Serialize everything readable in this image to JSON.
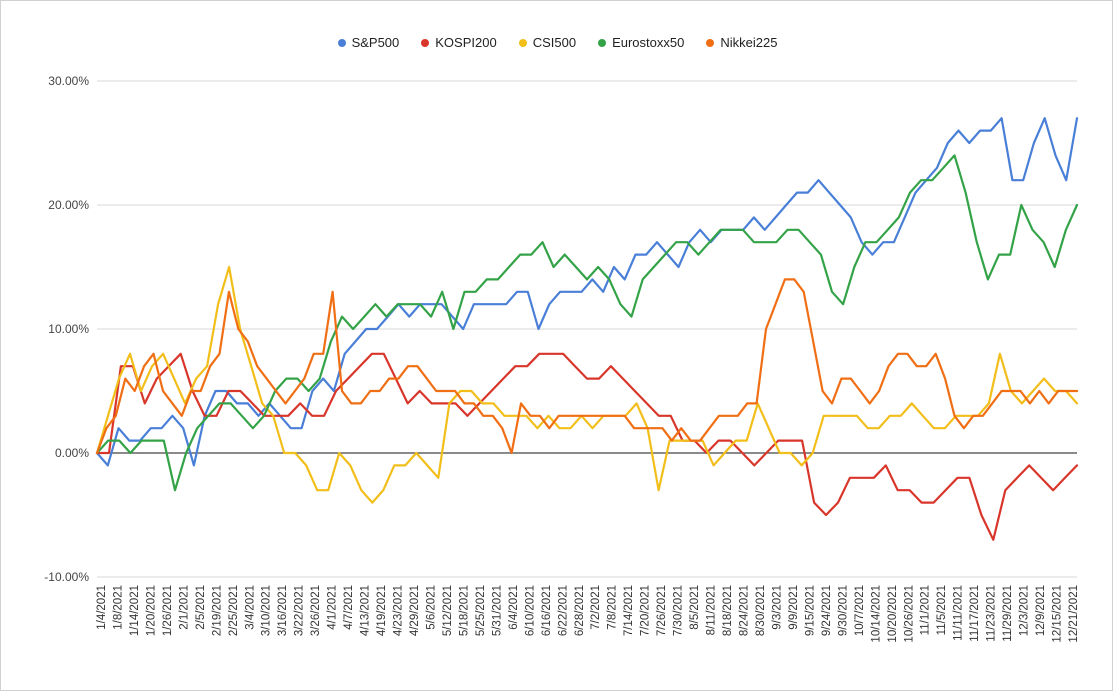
{
  "chart_data": {
    "type": "line",
    "title": "",
    "xlabel": "",
    "ylabel": "",
    "ylim": [
      -0.1,
      0.3
    ],
    "yticks": [
      "-10.00%",
      "0.00%",
      "10.00%",
      "20.00%",
      "30.00%"
    ],
    "ytick_values": [
      -0.1,
      0.0,
      0.1,
      0.2,
      0.3
    ],
    "x_tick_labels": [
      "1/4/2021",
      "1/8/2021",
      "1/14/2021",
      "1/20/2021",
      "1/26/2021",
      "2/1/2021",
      "2/5/2021",
      "2/19/2021",
      "2/25/2021",
      "3/4/2021",
      "3/10/2021",
      "3/16/2021",
      "3/22/2021",
      "3/26/2021",
      "4/1/2021",
      "4/7/2021",
      "4/13/2021",
      "4/19/2021",
      "4/23/2021",
      "4/29/2021",
      "5/6/2021",
      "5/12/2021",
      "5/18/2021",
      "5/25/2021",
      "5/31/2021",
      "6/4/2021",
      "6/10/2021",
      "6/16/2021",
      "6/22/2021",
      "6/28/2021",
      "7/2/2021",
      "7/8/2021",
      "7/14/2021",
      "7/20/2021",
      "7/26/2021",
      "7/30/2021",
      "8/5/2021",
      "8/11/2021",
      "8/18/2021",
      "8/24/2021",
      "8/30/2021",
      "9/3/2021",
      "9/9/2021",
      "9/15/2021",
      "9/24/2021",
      "9/30/2021",
      "10/7/2021",
      "10/14/2021",
      "10/20/2021",
      "10/26/2021",
      "11/1/2021",
      "11/5/2021",
      "11/11/2021",
      "11/17/2021",
      "11/23/2021",
      "11/29/2021",
      "12/3/2021",
      "12/9/2021",
      "12/15/2021",
      "12/21/2021"
    ],
    "legend_position": "top",
    "grid": true,
    "series": [
      {
        "name": "S&P500",
        "color": "#4a7fd8",
        "values": [
          0,
          -1,
          2,
          1,
          1,
          2,
          2,
          3,
          2,
          -1,
          3,
          5,
          5,
          4,
          4,
          3,
          4,
          3,
          2,
          2,
          5,
          6,
          5,
          8,
          9,
          10,
          10,
          11,
          12,
          11,
          12,
          12,
          12,
          11,
          10,
          12,
          12,
          12,
          12,
          13,
          13,
          10,
          12,
          13,
          13,
          13,
          14,
          13,
          15,
          14,
          16,
          16,
          17,
          16,
          15,
          17,
          18,
          17,
          18,
          18,
          18,
          19,
          18,
          19,
          20,
          21,
          21,
          22,
          21,
          20,
          19,
          17,
          16,
          17,
          17,
          19,
          21,
          22,
          23,
          25,
          26,
          25,
          26,
          26,
          27,
          22,
          22,
          25,
          27,
          24,
          22,
          27
        ]
      },
      {
        "name": "KOSPI200",
        "color": "#d9362b",
        "values": [
          0,
          0,
          7,
          7,
          4,
          6,
          7,
          8,
          5,
          3,
          3,
          5,
          5,
          4,
          3,
          3,
          3,
          4,
          3,
          3,
          5,
          6,
          7,
          8,
          8,
          6,
          4,
          5,
          4,
          4,
          4,
          3,
          4,
          5,
          6,
          7,
          7,
          8,
          8,
          8,
          7,
          6,
          6,
          7,
          6,
          5,
          4,
          3,
          3,
          1,
          1,
          0,
          1,
          1,
          0,
          -1,
          0,
          1,
          1,
          1,
          -4,
          -5,
          -4,
          -2,
          -2,
          -2,
          -1,
          -3,
          -3,
          -4,
          -4,
          -3,
          -2,
          -2,
          -5,
          -7,
          -3,
          -2,
          -1,
          -2,
          -3,
          -2,
          -1
        ]
      },
      {
        "name": "CSI500",
        "color": "#f2be1a",
        "values": [
          0,
          3,
          6,
          8,
          5,
          7,
          8,
          6,
          4,
          6,
          7,
          12,
          15,
          10,
          7,
          4,
          3,
          0,
          0,
          -1,
          -3,
          -3,
          0,
          -1,
          -3,
          -4,
          -3,
          -1,
          -1,
          0,
          -1,
          -2,
          4,
          5,
          5,
          4,
          4,
          3,
          3,
          3,
          2,
          3,
          2,
          2,
          3,
          2,
          3,
          3,
          3,
          4,
          2,
          -3,
          1,
          1,
          1,
          1,
          -1,
          0,
          1,
          1,
          4,
          2,
          0,
          0,
          -1,
          0,
          3,
          3,
          3,
          3,
          2,
          2,
          3,
          3,
          4,
          3,
          2,
          2,
          3,
          3,
          3,
          4,
          8,
          5,
          4,
          5,
          6,
          5,
          5,
          4
        ]
      },
      {
        "name": "Eurostoxx50",
        "color": "#34a348",
        "values": [
          0,
          1,
          1,
          0,
          1,
          1,
          1,
          -3,
          0,
          2,
          3,
          4,
          4,
          3,
          2,
          3,
          5,
          6,
          6,
          5,
          6,
          9,
          11,
          10,
          11,
          12,
          11,
          12,
          12,
          12,
          11,
          13,
          10,
          13,
          13,
          14,
          14,
          15,
          16,
          16,
          17,
          15,
          16,
          15,
          14,
          15,
          14,
          12,
          11,
          14,
          15,
          16,
          17,
          17,
          16,
          17,
          18,
          18,
          18,
          17,
          17,
          17,
          18,
          18,
          17,
          16,
          13,
          12,
          15,
          17,
          17,
          18,
          19,
          21,
          22,
          22,
          23,
          24,
          21,
          17,
          14,
          16,
          16,
          20,
          18,
          17,
          15,
          18,
          20
        ]
      },
      {
        "name": "Nikkei225",
        "color": "#f06e14",
        "values": [
          0,
          2,
          3,
          6,
          5,
          7,
          8,
          5,
          4,
          3,
          5,
          5,
          7,
          8,
          13,
          10,
          9,
          7,
          6,
          5,
          4,
          5,
          6,
          8,
          8,
          13,
          5,
          4,
          4,
          5,
          5,
          6,
          6,
          7,
          7,
          6,
          5,
          5,
          5,
          4,
          4,
          3,
          3,
          2,
          0,
          4,
          3,
          3,
          2,
          3,
          3,
          3,
          3,
          3,
          3,
          3,
          3,
          2,
          2,
          2,
          2,
          1,
          2,
          1,
          1,
          2,
          3,
          3,
          3,
          4,
          4,
          10,
          12,
          14,
          14,
          13,
          9,
          5,
          4,
          6,
          6,
          5,
          4,
          5,
          7,
          8,
          8,
          7,
          7,
          8,
          6,
          3,
          2,
          3,
          3,
          4,
          5,
          5,
          5,
          4,
          5,
          4,
          5,
          5,
          5
        ]
      }
    ]
  }
}
